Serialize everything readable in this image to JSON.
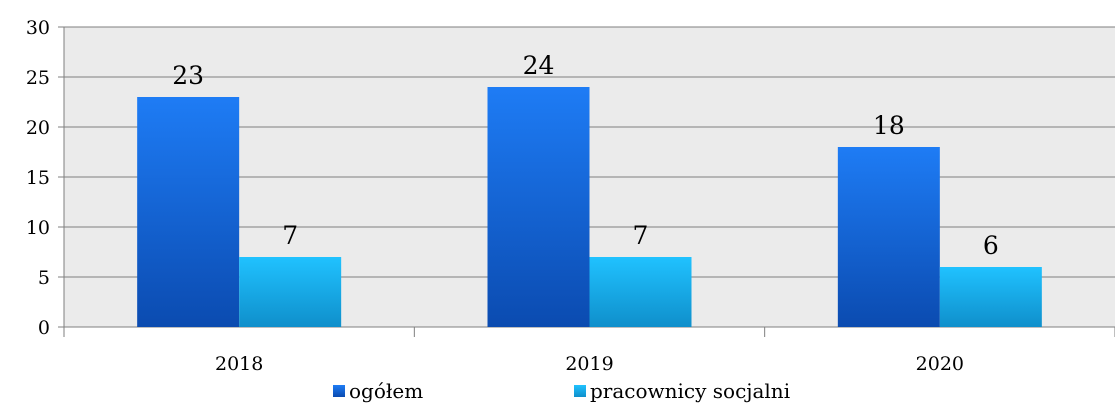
{
  "chart_data": {
    "type": "bar",
    "title": "",
    "xlabel": "",
    "ylabel": "",
    "categories": [
      "2018",
      "2019",
      "2020"
    ],
    "series": [
      {
        "name": "ogółem",
        "values": [
          23,
          24,
          18
        ],
        "color": "#1a6fe6"
      },
      {
        "name": "pracownicy socjalni",
        "values": [
          7,
          7,
          6
        ],
        "color": "#19b2ec"
      }
    ],
    "ylim": [
      0,
      30
    ],
    "yticks": [
      0,
      5,
      10,
      15,
      20,
      25,
      30
    ],
    "ytick_labels": [
      "0",
      "5",
      "10",
      "15",
      "20",
      "25",
      "30"
    ],
    "data_labels": [
      [
        "23",
        "24",
        "18"
      ],
      [
        "7",
        "7",
        "6"
      ]
    ],
    "grid": true,
    "plot_background": "#ebebeb",
    "legend_position": "bottom"
  }
}
